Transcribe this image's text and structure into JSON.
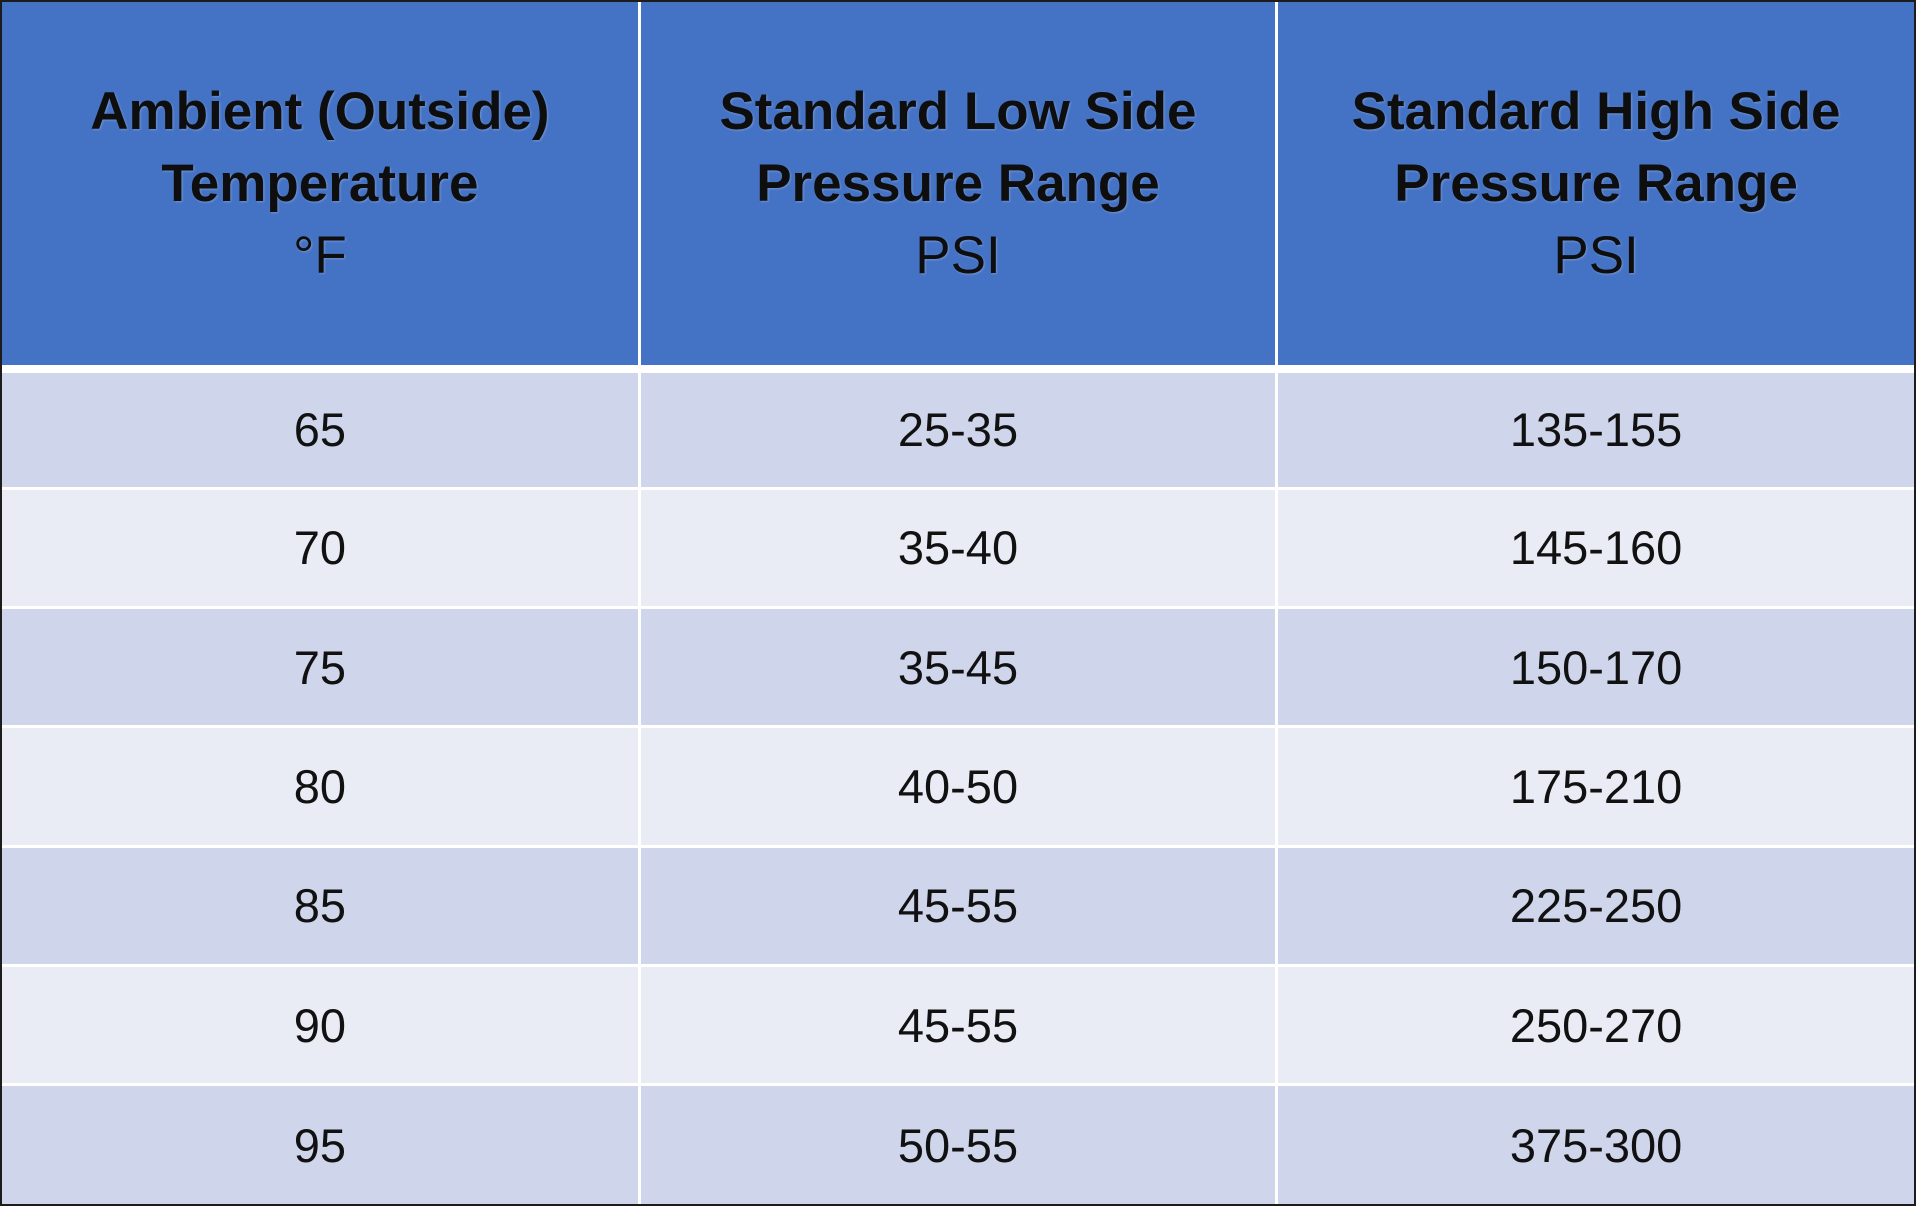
{
  "table": {
    "headers": [
      {
        "line1": "Ambient (Outside)",
        "line2": "Temperature",
        "unit": "°F"
      },
      {
        "line1": "Standard Low Side",
        "line2": "Pressure Range",
        "unit": "PSI"
      },
      {
        "line1": "Standard High Side",
        "line2": "Pressure Range",
        "unit": "PSI"
      }
    ],
    "rows": [
      [
        "65",
        "25-35",
        "135-155"
      ],
      [
        "70",
        "35-40",
        "145-160"
      ],
      [
        "75",
        "35-45",
        "150-170"
      ],
      [
        "80",
        "40-50",
        "175-210"
      ],
      [
        "85",
        "45-55",
        "225-250"
      ],
      [
        "90",
        "45-55",
        "250-270"
      ],
      [
        "95",
        "50-55",
        "375-300"
      ]
    ]
  },
  "colors": {
    "header_background": "#4472c4",
    "row_dark": "#cfd5ea",
    "row_light": "#e9ebf5"
  }
}
